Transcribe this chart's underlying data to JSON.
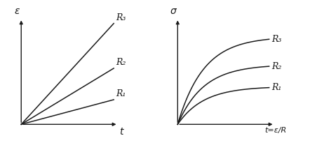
{
  "bg_color": "#ffffff",
  "left": {
    "xlabel": "t",
    "ylabel": "ε",
    "lines": [
      {
        "slope": 4.5,
        "label": "R₃"
      },
      {
        "slope": 2.5,
        "label": "R₂"
      },
      {
        "slope": 1.1,
        "label": "R₁"
      }
    ]
  },
  "right": {
    "xlabel": "t=ε/R",
    "ylabel": "σ",
    "curves": [
      {
        "sat": 0.88,
        "k": 3.5,
        "label": "R₃"
      },
      {
        "sat": 0.6,
        "k": 3.5,
        "label": "R₂"
      },
      {
        "sat": 0.38,
        "k": 3.5,
        "label": "R₁"
      }
    ]
  },
  "line_color": "#1a1a1a",
  "label_fontsize": 9,
  "axis_label_fontsize": 10,
  "lw": 1.1
}
